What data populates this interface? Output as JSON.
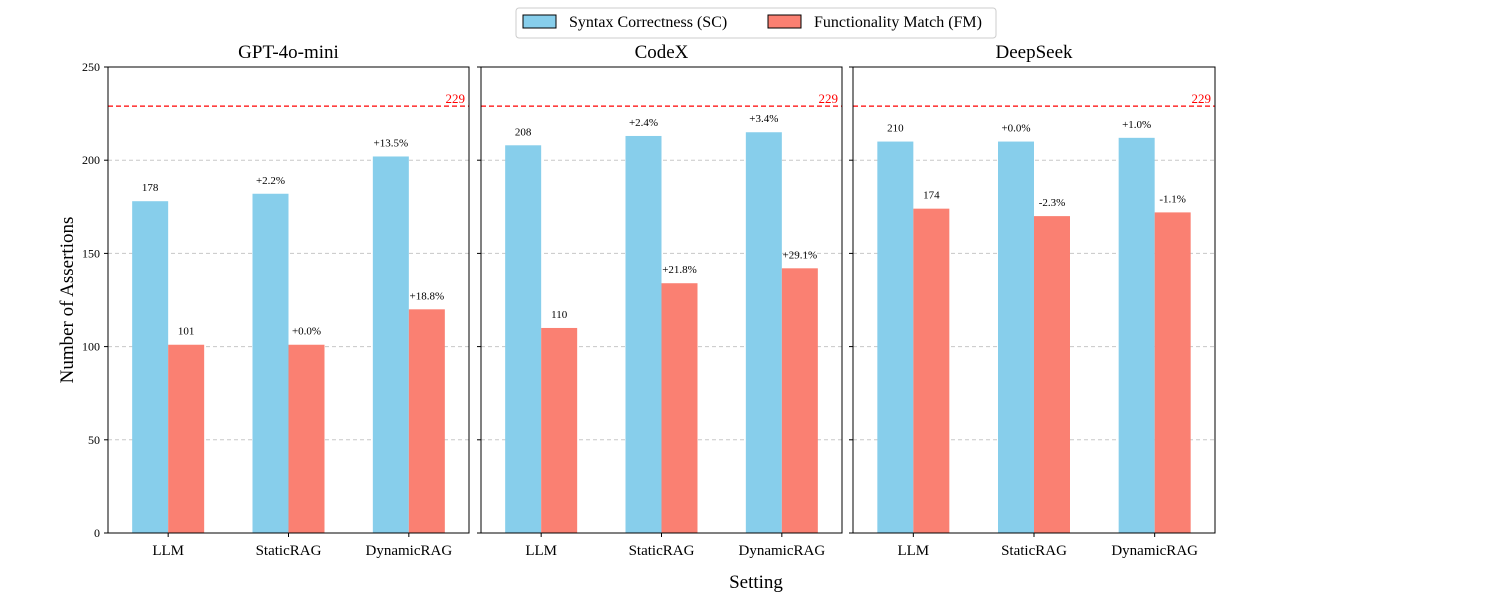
{
  "chart_data": {
    "type": "bar",
    "ylabel": "Number of Assertions",
    "xlabel": "Setting",
    "ylim": [
      0,
      250
    ],
    "yticks": [
      0,
      50,
      100,
      150,
      200,
      250
    ],
    "grid": "y-dashed",
    "legend_position": "top-center",
    "categories": [
      "LLM",
      "StaticRAG",
      "DynamicRAG"
    ],
    "reference_line": {
      "value": 229,
      "label": "229",
      "color": "#ff0000"
    },
    "series_meta": [
      {
        "name": "Syntax Correctness (SC)",
        "color": "#87ceeb"
      },
      {
        "name": "Functionality Match (FM)",
        "color": "#fa8072"
      }
    ],
    "panels": [
      {
        "title": "GPT-4o-mini",
        "sc": [
          178,
          182,
          202
        ],
        "fm": [
          101,
          101,
          120
        ],
        "sc_labels": [
          "178",
          "+2.2%",
          "+13.5%"
        ],
        "fm_labels": [
          "101",
          "+0.0%",
          "+18.8%"
        ]
      },
      {
        "title": "CodeX",
        "sc": [
          208,
          213,
          215
        ],
        "fm": [
          110,
          134,
          142
        ],
        "sc_labels": [
          "208",
          "+2.4%",
          "+3.4%"
        ],
        "fm_labels": [
          "110",
          "+21.8%",
          "+29.1%"
        ]
      },
      {
        "title": "DeepSeek",
        "sc": [
          210,
          210,
          212
        ],
        "fm": [
          174,
          170,
          172
        ],
        "sc_labels": [
          "210",
          "+0.0%",
          "+1.0%"
        ],
        "fm_labels": [
          "174",
          "-2.3%",
          "-1.1%"
        ]
      }
    ]
  }
}
